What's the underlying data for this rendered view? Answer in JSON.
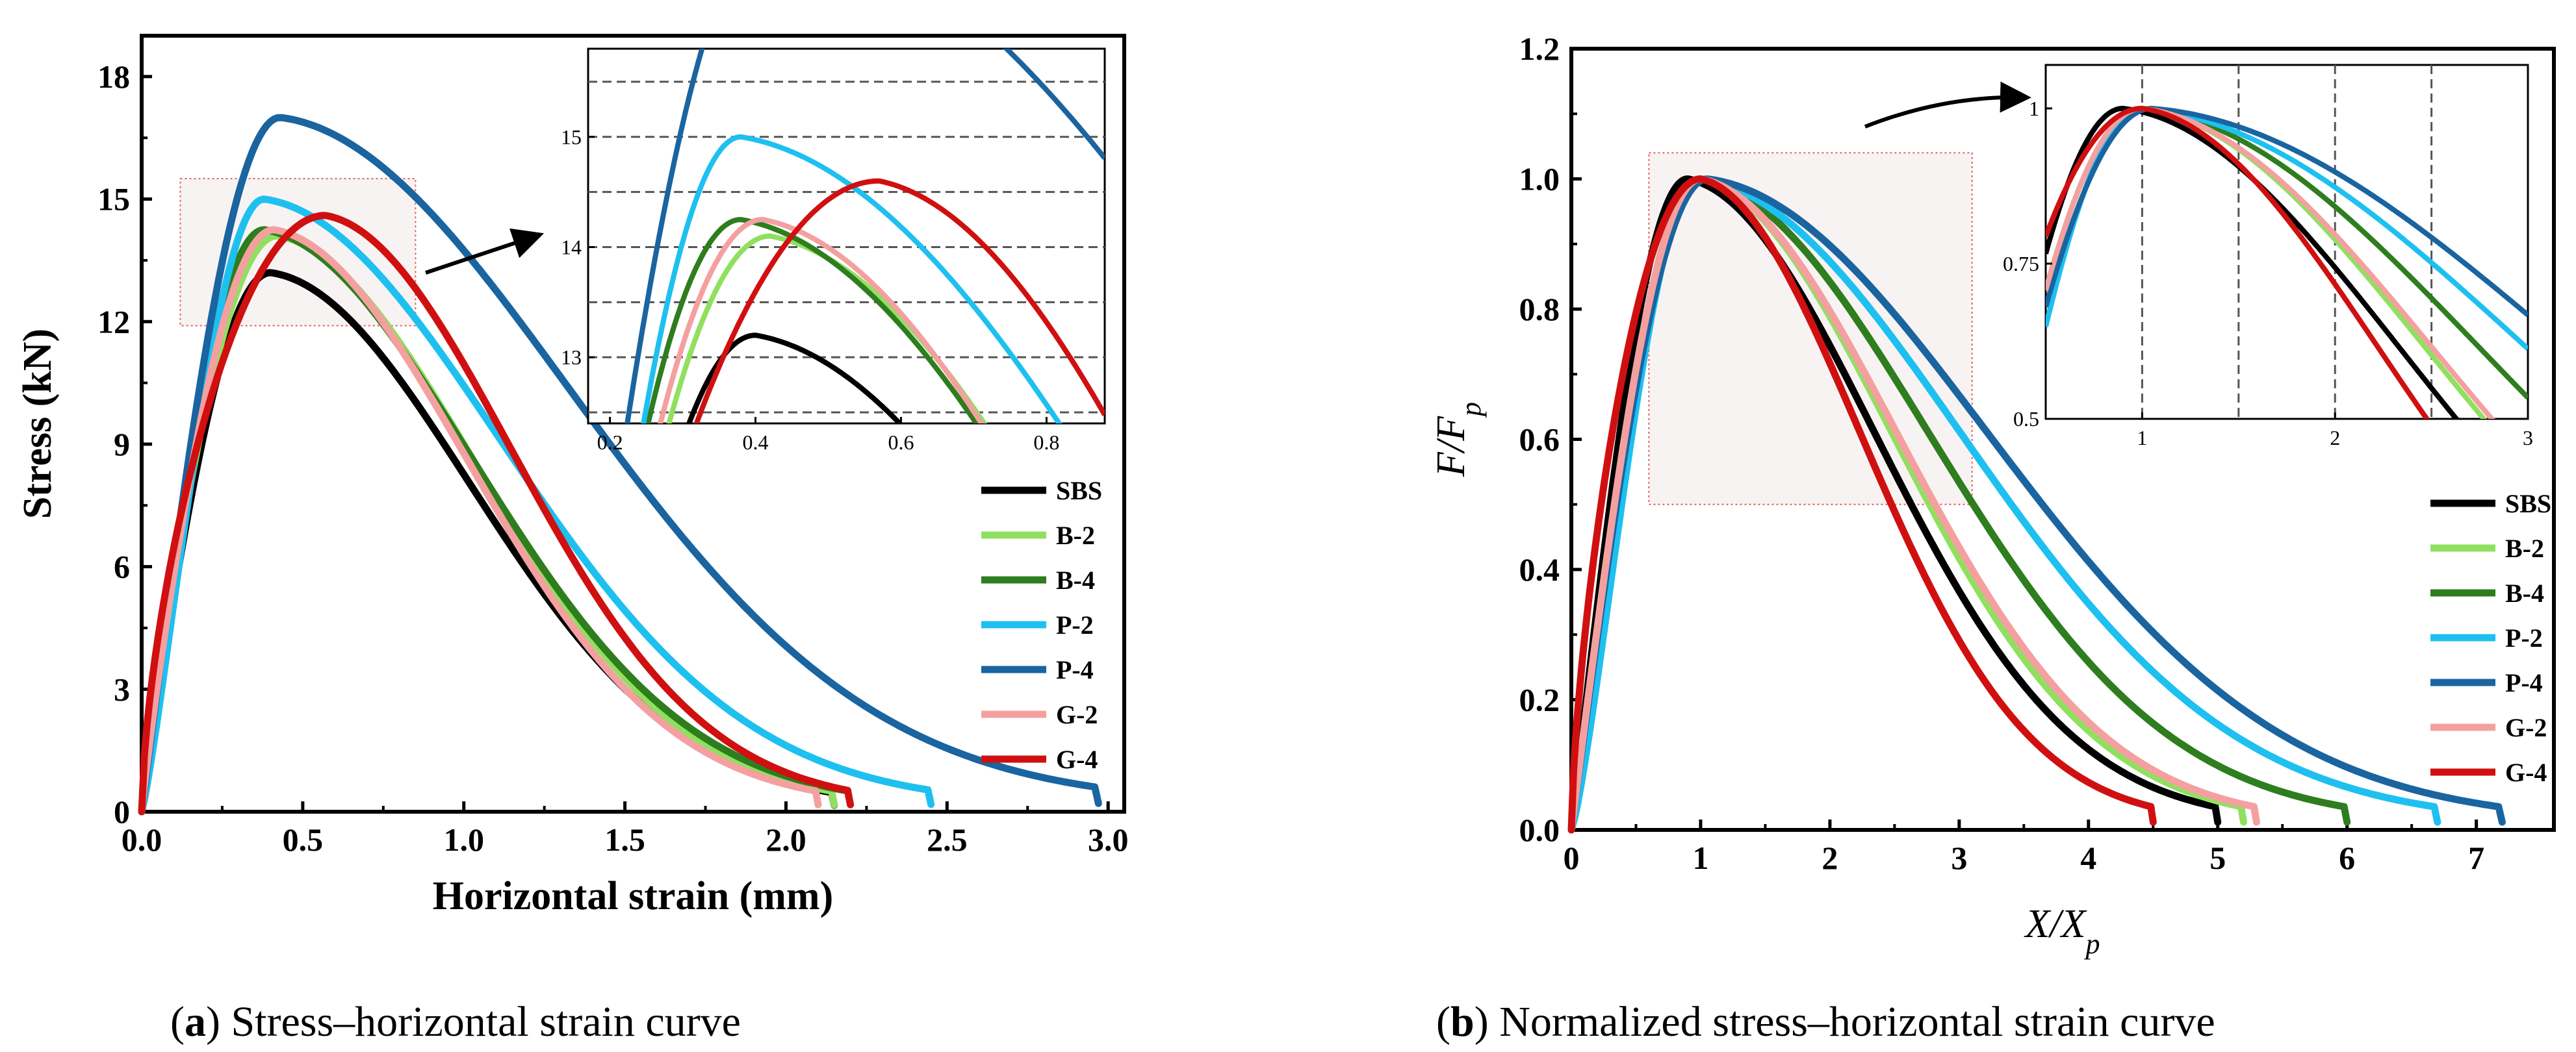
{
  "chart_data": [
    {
      "type": "line",
      "caption_letter": "a",
      "caption_text": " Stress–horizontal strain curve",
      "xlabel": "Horizontal strain (mm)",
      "ylabel": "Stress (kN)",
      "xlim": [
        0,
        3.05
      ],
      "ylim": [
        0,
        19
      ],
      "xticks": [
        0.0,
        0.5,
        1.0,
        1.5,
        2.0,
        2.5,
        3.0
      ],
      "xtick_labels": [
        "0.0",
        "0.5",
        "1.0",
        "1.5",
        "2.0",
        "2.5",
        "3.0"
      ],
      "yticks": [
        0,
        3,
        6,
        9,
        12,
        15,
        18
      ],
      "ytick_labels": [
        "0",
        "3",
        "6",
        "9",
        "12",
        "15",
        "18"
      ],
      "legend": "right",
      "grid": false,
      "series": [
        {
          "name": "SBS",
          "color": "#000000",
          "peak_x": 0.4,
          "peak_y": 13.2,
          "end_x": 2.15,
          "rise_k": 2.1
        },
        {
          "name": "B-2",
          "color": "#90e060",
          "peak_x": 0.42,
          "peak_y": 14.1,
          "end_x": 2.15,
          "rise_k": 2.2
        },
        {
          "name": "B-4",
          "color": "#2e7d1e",
          "peak_x": 0.38,
          "peak_y": 14.25,
          "end_x": 2.2,
          "rise_k": 2.1
        },
        {
          "name": "P-2",
          "color": "#1ec0f0",
          "peak_x": 0.38,
          "peak_y": 15.0,
          "end_x": 2.45,
          "rise_k": 1.7
        },
        {
          "name": "P-4",
          "color": "#1a64a0",
          "peak_x": 0.43,
          "peak_y": 17.0,
          "end_x": 2.97,
          "rise_k": 2.0
        },
        {
          "name": "G-2",
          "color": "#f4a0a0",
          "peak_x": 0.41,
          "peak_y": 14.25,
          "end_x": 2.1,
          "rise_k": 2.2
        },
        {
          "name": "G-4",
          "color": "#d01010",
          "peak_x": 0.57,
          "peak_y": 14.6,
          "end_x": 2.2,
          "rise_k": 3.2
        }
      ],
      "inset": {
        "xlim": [
          0.17,
          0.88
        ],
        "ylim": [
          12.4,
          15.8
        ],
        "xticks": [
          0.2,
          0.4,
          0.6,
          0.8
        ],
        "xtick_labels": [
          "0.2",
          "0.4",
          "0.6",
          "0.8"
        ],
        "yticks": [
          13,
          14,
          15
        ],
        "ytick_labels": [
          "13",
          "14",
          "15"
        ],
        "dashed_gridlines_y": [
          12.5,
          13.0,
          13.5,
          14.0,
          14.5,
          15.0,
          15.5
        ]
      }
    },
    {
      "type": "line",
      "caption_letter": "b",
      "caption_text": " Normalized stress–horizontal strain curve",
      "xlabel": "X/Xp",
      "ylabel": "F/Fp",
      "xlim": [
        0,
        7.6
      ],
      "ylim": [
        0,
        1.2
      ],
      "xticks": [
        0,
        1,
        2,
        3,
        4,
        5,
        6,
        7
      ],
      "xtick_labels": [
        "0",
        "1",
        "2",
        "3",
        "4",
        "5",
        "6",
        "7"
      ],
      "yticks": [
        0.0,
        0.2,
        0.4,
        0.6,
        0.8,
        1.0,
        1.2
      ],
      "ytick_labels": [
        "0.0",
        "0.2",
        "0.4",
        "0.6",
        "0.8",
        "1.0",
        "1.2"
      ],
      "legend": "right",
      "grid": false,
      "series": [
        {
          "name": "SBS",
          "color": "#000000",
          "peak_x": 0.9,
          "end_x": 5.0,
          "rise_k": 2.0
        },
        {
          "name": "B-2",
          "color": "#90e060",
          "peak_x": 1.0,
          "end_x": 5.2,
          "rise_k": 2.0
        },
        {
          "name": "B-4",
          "color": "#2e7d1e",
          "peak_x": 1.0,
          "end_x": 6.0,
          "rise_k": 2.0
        },
        {
          "name": "P-2",
          "color": "#1ec0f0",
          "peak_x": 1.0,
          "end_x": 6.7,
          "rise_k": 1.6
        },
        {
          "name": "P-4",
          "color": "#1a64a0",
          "peak_x": 1.05,
          "end_x": 7.2,
          "rise_k": 2.0
        },
        {
          "name": "G-2",
          "color": "#f4a0a0",
          "peak_x": 1.0,
          "end_x": 5.3,
          "rise_k": 2.0
        },
        {
          "name": "G-4",
          "color": "#d01010",
          "peak_x": 1.0,
          "end_x": 4.5,
          "rise_k": 3.0
        }
      ],
      "inset": {
        "xlim": [
          0.5,
          3.0
        ],
        "ylim": [
          0.5,
          1.07
        ],
        "xticks": [
          1,
          2,
          3
        ],
        "xtick_labels": [
          "1",
          "2",
          "3"
        ],
        "yticks": [
          0.5,
          0.75,
          1.0
        ],
        "ytick_labels": [
          "0.5",
          "0.75",
          "1"
        ],
        "dashed_gridlines_x": [
          1.0,
          1.5,
          2.0,
          2.5
        ]
      }
    }
  ]
}
